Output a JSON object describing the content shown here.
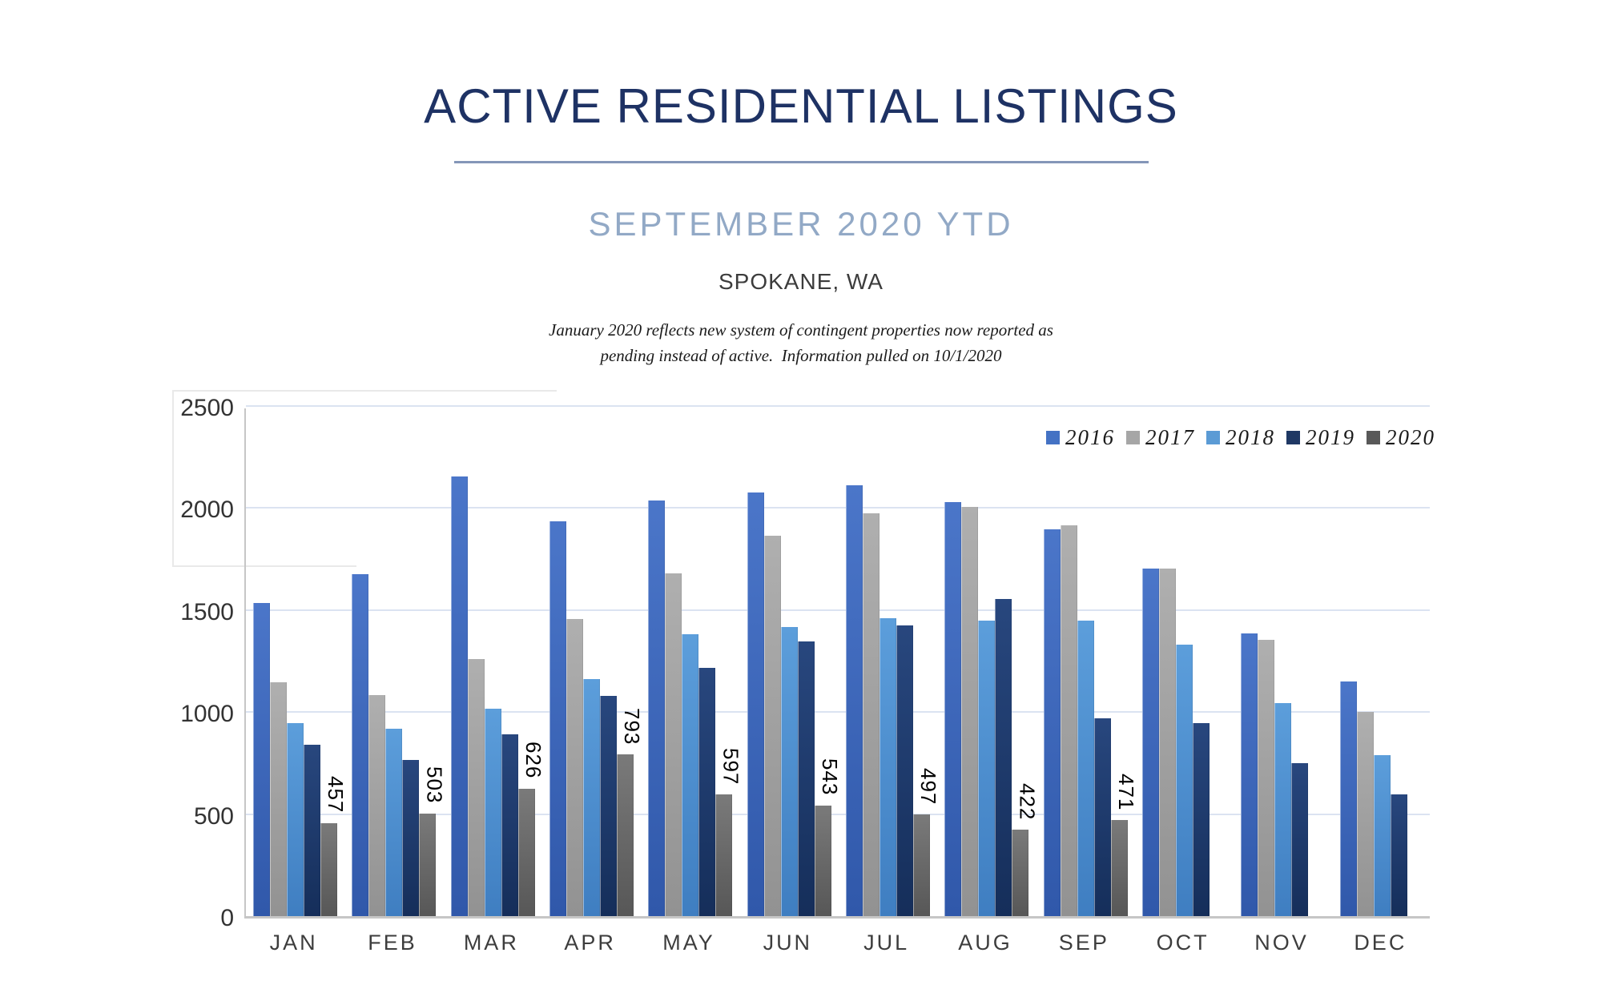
{
  "header": {
    "title": "ACTIVE RESIDENTIAL LISTINGS",
    "subtitle": "SEPTEMBER 2020 YTD",
    "location": "SPOKANE, WA",
    "note_line1": "January 2020 reflects new system of contingent properties now reported as",
    "note_line2": "pending instead of active.  Information pulled on 10/1/2020"
  },
  "colors": {
    "title": "#1e3264",
    "subtitle": "#92a9c6",
    "title_underline": "#8496b8",
    "gridline": "#dbe3f1",
    "axis_line": "#c6c6c6"
  },
  "chart_data": {
    "type": "bar",
    "title": "ACTIVE RESIDENTIAL LISTINGS",
    "xlabel": "",
    "ylabel": "",
    "ylim": [
      0,
      2500
    ],
    "yticks": [
      0,
      500,
      1000,
      1500,
      2000,
      2500
    ],
    "grid": true,
    "legend_position": "top-right",
    "categories": [
      "JAN",
      "FEB",
      "MAR",
      "APR",
      "MAY",
      "JUN",
      "JUL",
      "AUG",
      "SEP",
      "OCT",
      "NOV",
      "DEC"
    ],
    "series": [
      {
        "name": "2016",
        "legend_color": "#4472c4",
        "grad_top": "#4b76c9",
        "grad_bottom": "#3058aa",
        "values": [
          1535,
          1675,
          2155,
          1935,
          2035,
          2075,
          2110,
          2030,
          1895,
          1705,
          1385,
          1150
        ]
      },
      {
        "name": "2017",
        "legend_color": "#a6a6a6",
        "grad_top": "#afafaf",
        "grad_bottom": "#929292",
        "values": [
          1145,
          1085,
          1260,
          1455,
          1680,
          1865,
          1975,
          2005,
          1915,
          1705,
          1355,
          1000
        ]
      },
      {
        "name": "2018",
        "legend_color": "#5b9bd5",
        "grad_top": "#5c9edb",
        "grad_bottom": "#3f7ec1",
        "values": [
          945,
          920,
          1015,
          1160,
          1380,
          1415,
          1460,
          1450,
          1450,
          1330,
          1045,
          790
        ]
      },
      {
        "name": "2019",
        "legend_color": "#1f3864",
        "grad_top": "#28477e",
        "grad_bottom": "#152e5a",
        "values": [
          840,
          765,
          890,
          1080,
          1215,
          1345,
          1425,
          1555,
          970,
          945,
          750,
          595
        ]
      },
      {
        "name": "2020",
        "legend_color": "#595959",
        "grad_top": "#7a7a7a",
        "grad_bottom": "#575757",
        "show_data_labels": true,
        "values": [
          457,
          503,
          626,
          793,
          597,
          543,
          497,
          422,
          471,
          null,
          null,
          null
        ]
      }
    ]
  }
}
